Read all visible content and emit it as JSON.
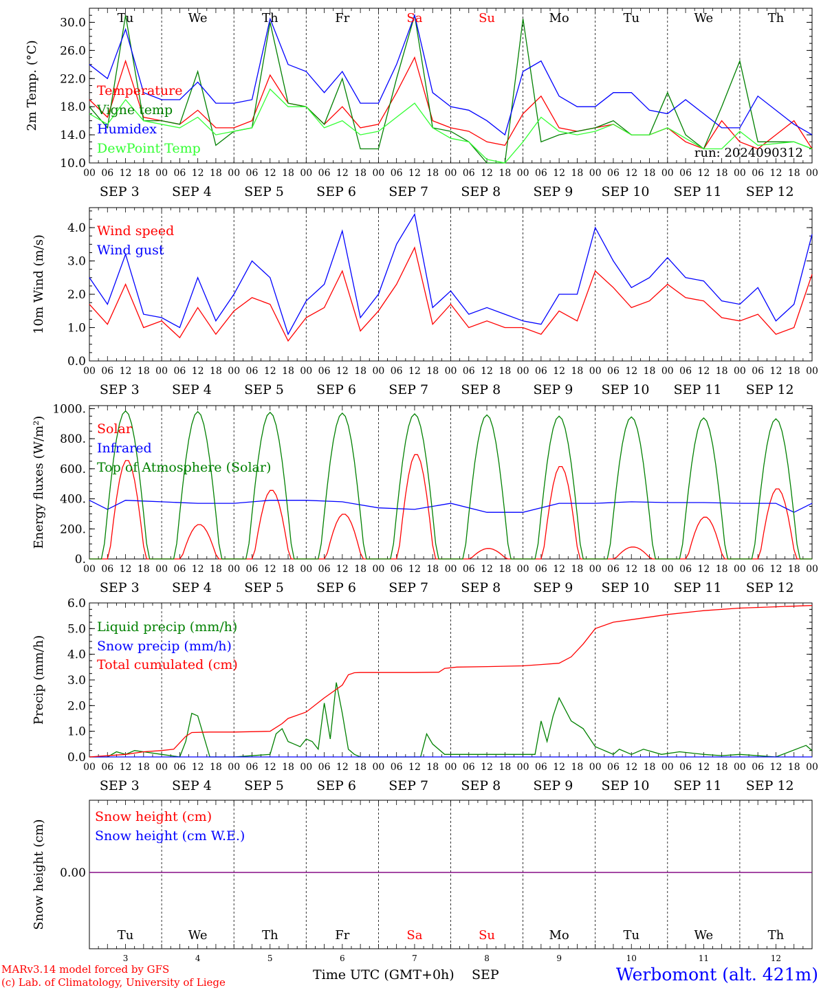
{
  "days": [
    "Tu",
    "We",
    "Th",
    "Fr",
    "Sa",
    "Su",
    "Mo",
    "Tu",
    "We",
    "Th"
  ],
  "weekend_days": [
    4,
    5
  ],
  "date_labels": [
    "SEP  3",
    "SEP  4",
    "SEP  5",
    "SEP  6",
    "SEP  7",
    "SEP  8",
    "SEP  9",
    "SEP 10",
    "SEP 11",
    "SEP 12"
  ],
  "hour_ticks": [
    "00",
    "06",
    "12",
    "18"
  ],
  "hour_end": "00",
  "bottom_dates": [
    "3",
    "4",
    "5",
    "6",
    "7",
    "8",
    "9",
    "10",
    "11",
    "12"
  ],
  "run_label": "run: 2024090312",
  "footer": {
    "model": "MARv3.14 model forced by GFS",
    "copyright": "(c) Lab. of Climatology, University of Liege",
    "xlabel": "Time UTC (GMT+0h)",
    "month": "SEP",
    "station": "Werbomont (alt. 421m)"
  },
  "colors": {
    "red": "#ff0000",
    "green": "#008000",
    "blue": "#0000ff",
    "lightgreen": "#33ff33",
    "purple": "#800080",
    "weekend": "#ff0000"
  },
  "chart_data": [
    {
      "type": "line",
      "ylabel": "2m Temp. (°C)",
      "ylim": [
        10,
        32
      ],
      "yticks": [
        10,
        14,
        18,
        22,
        26,
        30
      ],
      "ytick_labels": [
        "10.0",
        "14.0",
        "18.0",
        "22.0",
        "26.0",
        "30.0"
      ],
      "x_unit": "hours since 2024-09-03 00 UTC",
      "series": [
        {
          "name": "Temperature",
          "color": "red",
          "x": [
            0,
            6,
            12,
            18,
            24,
            30,
            36,
            42,
            48,
            54,
            60,
            66,
            72,
            78,
            84,
            90,
            96,
            102,
            108,
            114,
            120,
            126,
            132,
            138,
            144,
            150,
            156,
            162,
            168,
            174,
            180,
            186,
            192,
            198,
            204,
            210,
            216,
            222,
            234,
            240
          ],
          "y": [
            19,
            16.5,
            24.5,
            16.5,
            16,
            15.5,
            17.5,
            15,
            15,
            16,
            22.5,
            18.5,
            18,
            15.5,
            18,
            15,
            15.5,
            20,
            25,
            16,
            15,
            14.5,
            13,
            12.5,
            17,
            19.5,
            15,
            14.5,
            15,
            15.5,
            14,
            14,
            15,
            13,
            12,
            16,
            13,
            12,
            16,
            12
          ]
        },
        {
          "name": "Vigne temp",
          "color": "green",
          "x": [
            0,
            6,
            12,
            18,
            24,
            30,
            36,
            42,
            48,
            54,
            60,
            66,
            72,
            78,
            84,
            90,
            96,
            102,
            108,
            114,
            120,
            126,
            132,
            138,
            144,
            150,
            156,
            162,
            168,
            174,
            180,
            186,
            192,
            198,
            204,
            210,
            216,
            222,
            228,
            234,
            240
          ],
          "y": [
            18,
            15,
            31,
            16,
            16,
            15.5,
            23,
            12.5,
            14.5,
            15,
            30,
            18.5,
            18,
            15.5,
            22,
            12,
            12,
            22,
            31,
            15,
            14.5,
            13,
            10,
            10,
            30.5,
            13,
            14,
            14.5,
            15,
            16,
            14,
            14,
            20,
            14,
            12,
            18,
            24.5,
            13,
            13,
            13,
            12
          ]
        },
        {
          "name": "Humidex",
          "color": "blue",
          "x": [
            0,
            6,
            12,
            18,
            24,
            30,
            36,
            42,
            48,
            54,
            60,
            66,
            72,
            78,
            84,
            90,
            96,
            102,
            108,
            114,
            120,
            126,
            132,
            138,
            144,
            150,
            156,
            162,
            168,
            174,
            180,
            186,
            192,
            198,
            204,
            210,
            216,
            222,
            234,
            240
          ],
          "y": [
            24,
            22,
            29,
            20,
            19,
            19,
            21.5,
            18.5,
            18.5,
            19,
            30.5,
            24,
            23,
            20,
            23,
            18.5,
            18.5,
            24,
            31,
            20,
            18,
            17.5,
            16,
            14,
            23,
            24.5,
            19.5,
            18,
            18,
            20,
            20,
            17.5,
            17,
            19,
            17,
            15,
            15,
            19.5,
            15.5,
            14
          ]
        },
        {
          "name": "DewPoint Temp",
          "color": "lightgreen",
          "x": [
            0,
            6,
            12,
            18,
            24,
            30,
            36,
            42,
            48,
            54,
            60,
            66,
            72,
            78,
            84,
            90,
            96,
            102,
            108,
            114,
            120,
            126,
            132,
            138,
            144,
            150,
            156,
            162,
            168,
            174,
            180,
            186,
            192,
            198,
            204,
            210,
            216,
            222,
            234,
            240
          ],
          "y": [
            17,
            15.5,
            19,
            16,
            15.5,
            15,
            16.5,
            14,
            14.5,
            15,
            20.5,
            18,
            18,
            15,
            16,
            14,
            14.5,
            16.5,
            18.5,
            15,
            13.5,
            13,
            10.5,
            10,
            13,
            16.5,
            14.5,
            14,
            14.5,
            15.5,
            14,
            14,
            15,
            13.5,
            12,
            12,
            14.5,
            12.5,
            13,
            12
          ]
        }
      ]
    },
    {
      "type": "line",
      "ylabel": "10m Wind (m/s)",
      "ylim": [
        0,
        4.6
      ],
      "yticks": [
        0,
        1,
        2,
        3,
        4
      ],
      "ytick_labels": [
        "0.0",
        "1.0",
        "2.0",
        "3.0",
        "4.0"
      ],
      "series": [
        {
          "name": "Wind speed",
          "color": "red",
          "x": [
            0,
            6,
            12,
            18,
            24,
            30,
            36,
            42,
            48,
            54,
            60,
            66,
            72,
            78,
            84,
            90,
            96,
            102,
            108,
            114,
            120,
            126,
            132,
            138,
            144,
            150,
            156,
            162,
            168,
            174,
            180,
            186,
            192,
            198,
            204,
            210,
            216,
            222,
            228,
            234,
            240
          ],
          "y": [
            1.7,
            1.1,
            2.3,
            1.0,
            1.2,
            0.7,
            1.6,
            0.8,
            1.5,
            1.9,
            1.7,
            0.6,
            1.3,
            1.6,
            2.7,
            0.9,
            1.5,
            2.3,
            3.4,
            1.1,
            1.7,
            1.0,
            1.2,
            1.0,
            1.0,
            0.8,
            1.5,
            1.2,
            2.7,
            2.2,
            1.6,
            1.8,
            2.3,
            1.9,
            1.8,
            1.3,
            1.2,
            1.4,
            0.8,
            1.0,
            2.6
          ]
        },
        {
          "name": "Wind gust",
          "color": "blue",
          "x": [
            0,
            6,
            12,
            18,
            24,
            30,
            36,
            42,
            48,
            54,
            60,
            66,
            72,
            78,
            84,
            90,
            96,
            102,
            108,
            114,
            120,
            126,
            132,
            138,
            144,
            150,
            156,
            162,
            168,
            174,
            180,
            186,
            192,
            198,
            204,
            210,
            216,
            222,
            228,
            234,
            240
          ],
          "y": [
            2.5,
            1.7,
            3.2,
            1.4,
            1.3,
            1.0,
            2.5,
            1.2,
            2.0,
            3.0,
            2.5,
            0.8,
            1.8,
            2.3,
            3.9,
            1.3,
            2.0,
            3.5,
            4.4,
            1.6,
            2.1,
            1.4,
            1.6,
            1.4,
            1.2,
            1.1,
            2.0,
            2.0,
            4.0,
            3.0,
            2.2,
            2.5,
            3.1,
            2.5,
            2.4,
            1.8,
            1.7,
            2.2,
            1.2,
            1.7,
            3.8
          ]
        }
      ]
    },
    {
      "type": "line",
      "ylabel": "Energy fluxes (W/m²)",
      "ylim": [
        0,
        1020
      ],
      "yticks": [
        0,
        200,
        400,
        600,
        800,
        1000
      ],
      "ytick_labels": [
        "0.",
        "200.",
        "400.",
        "600.",
        "800.",
        "1000."
      ],
      "series": [
        {
          "name": "Solar",
          "color": "red",
          "peaks": [
            660,
            230,
            460,
            300,
            700,
            70,
            620,
            80,
            280,
            470
          ]
        },
        {
          "name": "Infrared",
          "color": "blue",
          "x": [
            0,
            6,
            12,
            18,
            24,
            36,
            48,
            60,
            72,
            84,
            96,
            108,
            120,
            132,
            144,
            156,
            168,
            180,
            192,
            204,
            216,
            228,
            234,
            240
          ],
          "y": [
            390,
            330,
            390,
            385,
            380,
            370,
            370,
            390,
            390,
            380,
            340,
            330,
            370,
            310,
            310,
            370,
            370,
            380,
            375,
            375,
            370,
            370,
            310,
            370
          ]
        },
        {
          "name": "Top of Atmosphere (Solar)",
          "color": "green",
          "peaks": [
            985,
            980,
            975,
            970,
            965,
            958,
            950,
            945,
            938,
            932
          ]
        }
      ]
    },
    {
      "type": "line",
      "ylabel": "Precip (mm/h)",
      "ylim": [
        0,
        6
      ],
      "yticks": [
        0,
        1,
        2,
        3,
        4,
        5,
        6
      ],
      "ytick_labels": [
        "0.0",
        "1.0",
        "2.0",
        "3.0",
        "4.0",
        "5.0",
        "6.0"
      ],
      "series": [
        {
          "name": "Liquid precip (mm/h)",
          "color": "green",
          "x": [
            0,
            6,
            9,
            12,
            15,
            18,
            24,
            30,
            32,
            34,
            36,
            40,
            48,
            60,
            62,
            64,
            66,
            68,
            70,
            72,
            74,
            76,
            78,
            80,
            82,
            84,
            86,
            88,
            90,
            96,
            110,
            112,
            114,
            118,
            144,
            148,
            150,
            152,
            154,
            156,
            160,
            164,
            168,
            170,
            172,
            174,
            176,
            180,
            184,
            190,
            196,
            204,
            210,
            216,
            228,
            238,
            240
          ],
          "y": [
            0,
            0,
            0.2,
            0.1,
            0.25,
            0.2,
            0.1,
            0,
            0.6,
            1.7,
            1.6,
            0,
            0,
            0.1,
            0.9,
            1.1,
            0.6,
            0.5,
            0.4,
            0.7,
            0.6,
            0.3,
            2.1,
            0.7,
            2.9,
            1.7,
            0.3,
            0.1,
            0,
            0,
            0,
            0.9,
            0.5,
            0.1,
            0.1,
            0.1,
            1.4,
            0.6,
            1.6,
            2.3,
            1.4,
            1.1,
            0.4,
            0.3,
            0.2,
            0.1,
            0.3,
            0.1,
            0.3,
            0.1,
            0.2,
            0.1,
            0.05,
            0.1,
            0,
            0.45,
            0.25
          ]
        },
        {
          "name": "Snow precip (mm/h)",
          "color": "blue",
          "x": [
            0,
            240
          ],
          "y": [
            0,
            0
          ]
        },
        {
          "name": "Total cumulated (cm)",
          "color": "red",
          "x": [
            0,
            12,
            18,
            24,
            28,
            32,
            34,
            40,
            48,
            60,
            64,
            66,
            72,
            78,
            84,
            86,
            88,
            90,
            96,
            108,
            116,
            118,
            122,
            132,
            144,
            150,
            156,
            160,
            164,
            168,
            174,
            180,
            192,
            204,
            216,
            228,
            240
          ],
          "y": [
            0,
            0.1,
            0.2,
            0.25,
            0.3,
            0.8,
            0.95,
            0.97,
            0.97,
            1.0,
            1.3,
            1.5,
            1.75,
            2.3,
            2.8,
            3.2,
            3.28,
            3.29,
            3.29,
            3.29,
            3.3,
            3.45,
            3.5,
            3.52,
            3.55,
            3.6,
            3.65,
            3.9,
            4.4,
            5.0,
            5.25,
            5.35,
            5.55,
            5.7,
            5.8,
            5.85,
            5.9
          ]
        }
      ]
    },
    {
      "type": "line",
      "ylabel": "Snow height (cm)",
      "yticks": [
        0
      ],
      "ytick_labels": [
        "0.00"
      ],
      "series": [
        {
          "name": "Snow height (cm)",
          "color": "red",
          "x": [
            0,
            240
          ],
          "y": [
            0,
            0
          ]
        },
        {
          "name": "Snow height (cm W.E.)",
          "color": "blue",
          "x": [
            0,
            240
          ],
          "y": [
            0,
            0
          ]
        }
      ]
    }
  ]
}
